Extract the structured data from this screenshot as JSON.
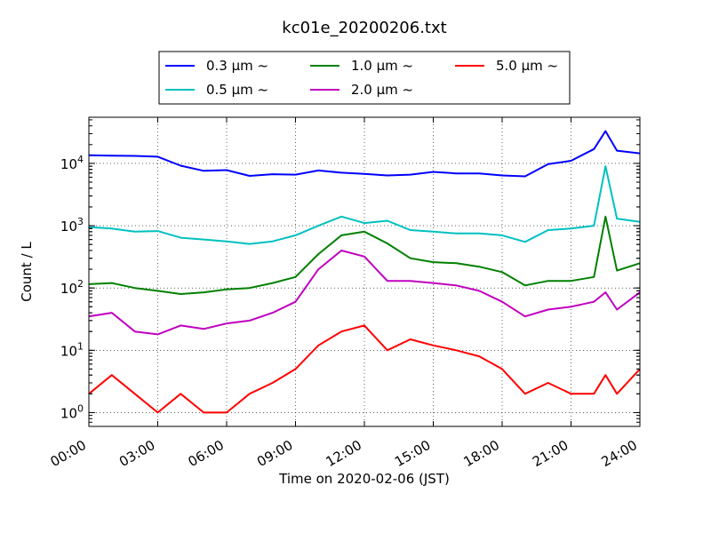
{
  "chart_data": {
    "type": "line",
    "title": "kc01e_20200206.txt",
    "xlabel": "Time on 2020-02-06 (JST)",
    "ylabel": "Count / L",
    "x_tick_labels": [
      "00:00",
      "03:00",
      "06:00",
      "09:00",
      "12:00",
      "15:00",
      "18:00",
      "21:00",
      "24:00"
    ],
    "x_ticks_hours": [
      0,
      3,
      6,
      9,
      12,
      15,
      18,
      21,
      24
    ],
    "xlim": [
      0,
      24
    ],
    "yscale": "log",
    "ylim": [
      0.6,
      55000
    ],
    "y_ticks": [
      1,
      10,
      100,
      1000,
      10000
    ],
    "y_tick_labels": [
      {
        "base": "10",
        "exp": "0"
      },
      {
        "base": "10",
        "exp": "1"
      },
      {
        "base": "10",
        "exp": "2"
      },
      {
        "base": "10",
        "exp": "3"
      },
      {
        "base": "10",
        "exp": "4"
      }
    ],
    "grid": true,
    "legend_position": "top",
    "x_hours": [
      0,
      1,
      2,
      3,
      4,
      5,
      6,
      7,
      8,
      9,
      10,
      11,
      12,
      13,
      14,
      15,
      16,
      17,
      18,
      19,
      20,
      21,
      22,
      22.5,
      23,
      24
    ],
    "series": [
      {
        "name": "0.3 μm ~",
        "color": "#0000ff",
        "values": [
          13500,
          13300,
          13200,
          12800,
          9200,
          7600,
          7800,
          6300,
          6700,
          6600,
          7700,
          7100,
          6800,
          6400,
          6600,
          7300,
          6900,
          6900,
          6400,
          6200,
          9700,
          11000,
          17000,
          33000,
          16000,
          14500
        ]
      },
      {
        "name": "0.5 μm ~",
        "color": "#00c0c0",
        "values": [
          950,
          900,
          800,
          820,
          640,
          600,
          560,
          510,
          560,
          700,
          1000,
          1400,
          1100,
          1200,
          850,
          800,
          750,
          750,
          700,
          550,
          850,
          900,
          1000,
          9000,
          1300,
          1150
        ]
      },
      {
        "name": "1.0 μm ~",
        "color": "#008000",
        "values": [
          115,
          120,
          100,
          90,
          80,
          85,
          95,
          100,
          120,
          150,
          350,
          700,
          800,
          520,
          300,
          260,
          250,
          220,
          180,
          110,
          130,
          130,
          150,
          1400,
          190,
          250
        ]
      },
      {
        "name": "2.0 μm ~",
        "color": "#bf00bf",
        "values": [
          35,
          40,
          20,
          18,
          25,
          22,
          27,
          30,
          40,
          60,
          200,
          400,
          320,
          130,
          130,
          120,
          110,
          90,
          60,
          35,
          45,
          50,
          60,
          85,
          45,
          85
        ]
      },
      {
        "name": "5.0 μm ~",
        "color": "#ff0000",
        "values": [
          2,
          4,
          2,
          1,
          2,
          1,
          1,
          2,
          3,
          5,
          12,
          20,
          25,
          10,
          15,
          12,
          10,
          8,
          5,
          2,
          3,
          2,
          2,
          4,
          2,
          5
        ]
      }
    ]
  }
}
